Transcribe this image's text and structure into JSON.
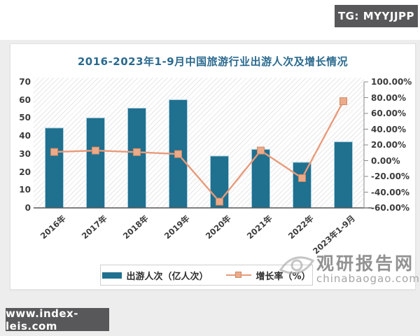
{
  "overlays": {
    "tg_badge": "TG: MYYJJPP",
    "site_badge": "www.index-leis.com"
  },
  "watermark": {
    "name": "观研报告网",
    "domain": "chinabaogao.com"
  },
  "chart_data": {
    "type": "bar",
    "title": "2016-2023年1-9月中国旅游行业出游人次及增长情况",
    "categories": [
      "2016年",
      "2017年",
      "2018年",
      "2019年",
      "2020年",
      "2021年",
      "2022年",
      "2023年1-9月"
    ],
    "series": [
      {
        "name": "出游人次（亿人次）",
        "type": "bar",
        "axis": "left",
        "color": "#20708f",
        "edge_color": "#a9cede",
        "values": [
          44.4,
          50.0,
          55.4,
          60.1,
          28.8,
          32.5,
          25.3,
          36.7
        ]
      },
      {
        "name": "增长率（%）",
        "type": "line",
        "axis": "right",
        "color": "#e89b7b",
        "marker": "square",
        "marker_color": "#edaa88",
        "marker_edge_color": "#c98a68",
        "values": [
          11.0,
          12.8,
          10.8,
          8.4,
          -52.1,
          12.8,
          -22.1,
          75.5
        ]
      }
    ],
    "axes": {
      "left": {
        "min": 0,
        "max": 70,
        "step": 10,
        "tick_labels": [
          "70",
          "60",
          "50",
          "40",
          "30",
          "20",
          "10",
          "0"
        ]
      },
      "right": {
        "min": -60,
        "max": 100,
        "step": 20,
        "tick_labels": [
          "100.00%",
          "80.00%",
          "60.00%",
          "40.00%",
          "20.00%",
          "0.00%",
          "-20.00%",
          "-40.00%",
          "-60.00%"
        ]
      }
    },
    "legend_position": "bottom",
    "grid": false,
    "plot_background": "diagonal-hatch",
    "title_color": "#2b6a8e"
  }
}
